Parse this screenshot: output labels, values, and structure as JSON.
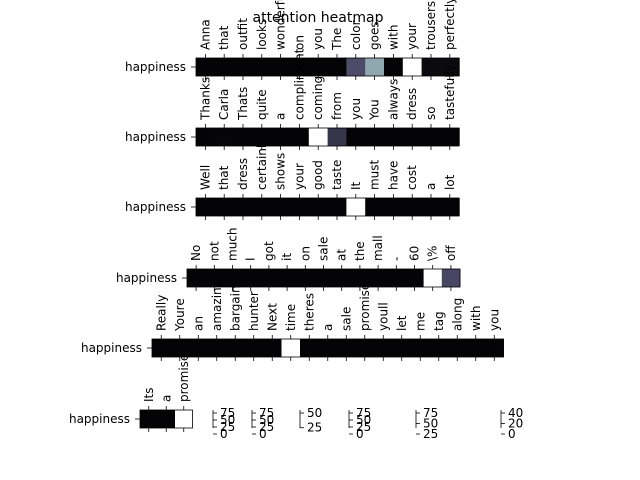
{
  "chart_data": {
    "type": "heatmap",
    "title": "attention heatmap",
    "colormap": "bone",
    "rows": [
      {
        "label": "happiness",
        "tokens": [
          "Anna",
          "that",
          "outfit",
          "looks",
          "wonderful",
          "on",
          "you",
          "The",
          "color",
          "goes",
          "with",
          "your",
          "trousers",
          "perfectly"
        ],
        "values": [
          0.02,
          0.02,
          0.02,
          0.02,
          0.02,
          0.02,
          0.02,
          0.02,
          0.35,
          0.65,
          0.02,
          1.0,
          0.05,
          0.05
        ]
      },
      {
        "label": "happiness",
        "tokens": [
          "Thanks",
          "Carla",
          "Thats",
          "quite",
          "a",
          "compliment",
          "coming",
          "from",
          "you",
          "You",
          "always",
          "dress",
          "so",
          "tastefully"
        ],
        "values": [
          0.02,
          0.03,
          0.02,
          0.02,
          0.02,
          0.02,
          1.0,
          0.25,
          0.02,
          0.02,
          0.02,
          0.02,
          0.02,
          0.02
        ]
      },
      {
        "label": "happiness",
        "tokens": [
          "Well",
          "that",
          "dress",
          "certainly",
          "shows",
          "your",
          "good",
          "taste",
          "It",
          "must",
          "have",
          "cost",
          "a",
          "lot"
        ],
        "values": [
          0.02,
          0.02,
          0.02,
          0.02,
          0.02,
          0.02,
          0.02,
          0.02,
          1.0,
          0.02,
          0.02,
          0.02,
          0.02,
          0.02
        ]
      },
      {
        "label": "happiness",
        "tokens": [
          "No",
          "not",
          "much",
          "I",
          "got",
          "it",
          "on",
          "sale",
          "at",
          "the",
          "mall",
          "-",
          "60",
          "\\%",
          "off"
        ],
        "values": [
          0.02,
          0.02,
          0.02,
          0.02,
          0.02,
          0.02,
          0.02,
          0.02,
          0.02,
          0.02,
          0.02,
          0.02,
          0.02,
          1.0,
          0.33
        ]
      },
      {
        "label": "happiness",
        "tokens": [
          "Really",
          "Youre",
          "an",
          "amazing",
          "bargain",
          "hunter",
          "Next",
          "time",
          "theres",
          "a",
          "sale",
          "promise",
          "youll",
          "let",
          "me",
          "tag",
          "along",
          "with",
          "you"
        ],
        "values": [
          0.02,
          0.02,
          0.02,
          0.02,
          0.02,
          0.02,
          0.02,
          1.0,
          0.02,
          0.02,
          0.02,
          0.02,
          0.02,
          0.02,
          0.02,
          0.02,
          0.02,
          0.02,
          0.02
        ]
      },
      {
        "label": "happiness",
        "tokens": [
          "Its",
          "a",
          "promise"
        ],
        "values": [
          0.02,
          0.02,
          1.0
        ]
      }
    ],
    "colorbars": [
      [
        "75",
        "50",
        "25",
        "0"
      ],
      [
        "75",
        "50",
        "25",
        "0"
      ],
      [
        "50",
        "25"
      ],
      [
        "75",
        "50",
        "25",
        "0"
      ],
      [
        "75",
        "50",
        "25"
      ],
      [
        "40",
        "20",
        "0"
      ]
    ]
  }
}
